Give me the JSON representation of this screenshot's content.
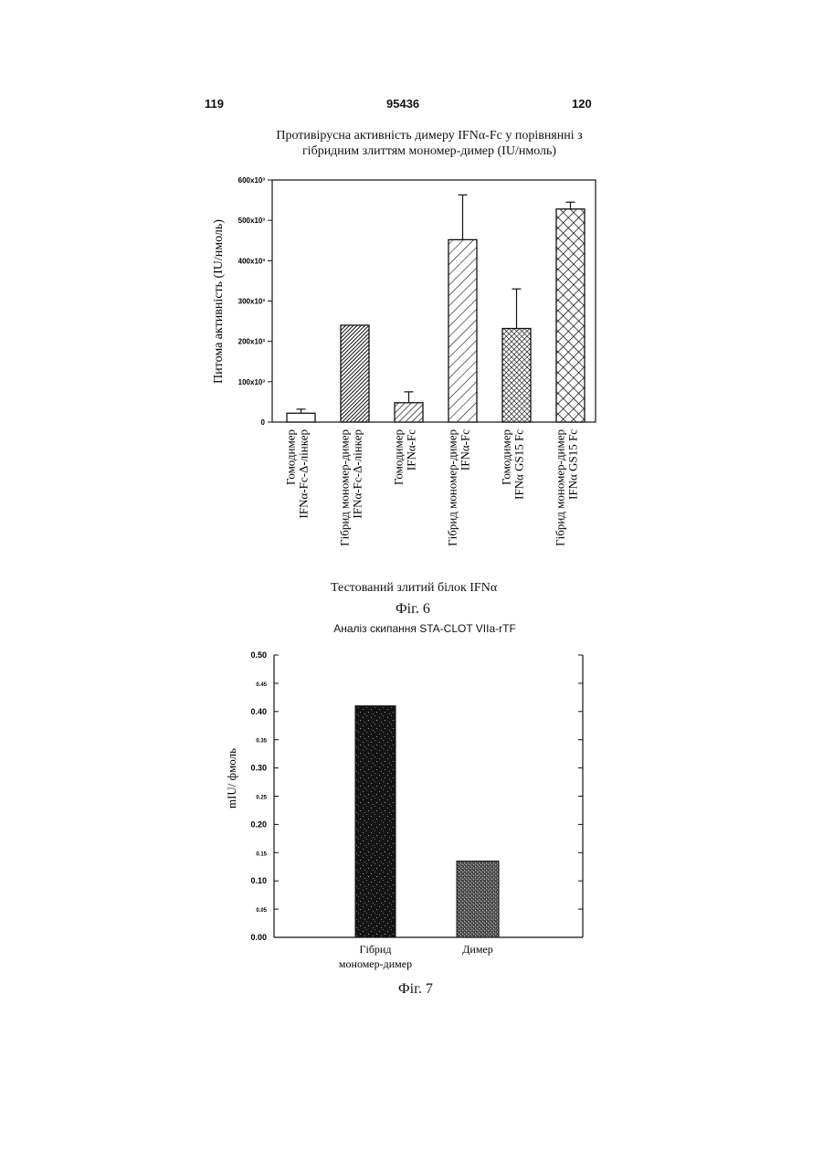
{
  "page": {
    "left_number": "119",
    "patent_number": "95436",
    "right_number": "120"
  },
  "chart_data": [
    {
      "type": "bar",
      "title": "Противірусна активність димеру IFNα-Fc у порівнянні з гібридним злиттям мономер-димер (IU/нмоль)",
      "title_lines": [
        "Противірусна активність димеру IFNα-Fc у порівнянні з",
        "гібридним злиттям мономер-димер (IU/нмоль)"
      ],
      "xlabel": "Тестований злитий білок IFNα",
      "ylabel": "Питома активність (IU/нмоль)",
      "ylim": [
        0,
        600000
      ],
      "yticks": [
        {
          "value": 0,
          "label": "0"
        },
        {
          "value": 100000,
          "label": "100x10³"
        },
        {
          "value": 200000,
          "label": "200x10³"
        },
        {
          "value": 300000,
          "label": "300x10³"
        },
        {
          "value": 400000,
          "label": "400x10³"
        },
        {
          "value": 500000,
          "label": "500x10³"
        },
        {
          "value": 600000,
          "label": "600x10³"
        }
      ],
      "categories": [
        "Гомодимер IFNα-Fc-Δ-лінкер",
        "Гібрид мономер-димер IFNα-Fc-Δ-лінкер",
        "Гомодимер IFNα-Fc",
        "Гібрид мономер-димер IFNα-Fc",
        "Гомодимер IFNα GS15 Fc",
        "Гібрид мономер-димер IFNα GS15 Fc"
      ],
      "category_lines": [
        [
          "Гомодимер",
          "IFNα-Fc-Δ-лінкер"
        ],
        [
          "Гібрид мономер-димер",
          "IFNα-Fc-Δ-лінкер"
        ],
        [
          "Гомодимер",
          "IFNα-Fc"
        ],
        [
          "Гібрид мономер-димер",
          "IFNα-Fc"
        ],
        [
          "Гомодимер",
          "IFNα GS15 Fc"
        ],
        [
          "Гібрид мономер-димер",
          "IFNα GS15 Fc"
        ]
      ],
      "values": [
        22000,
        240000,
        48000,
        452000,
        232000,
        528000
      ],
      "error_upper": [
        32000,
        null,
        75000,
        563000,
        330000,
        545000
      ],
      "patterns": [
        "none",
        "dense-diagonal",
        "diagonal",
        "wide-diagonal",
        "dense-crosshatch",
        "crosshatch"
      ],
      "grid": false,
      "legend": "none"
    },
    {
      "type": "bar",
      "title": "Аналіз скипання STA-CLOT VIIa-rTF",
      "xlabel": "",
      "ylabel": "mIU/ фмоль",
      "ylim": [
        0,
        0.5
      ],
      "yticks": [
        {
          "value": 0.0,
          "label": "0.00",
          "major": true
        },
        {
          "value": 0.05,
          "label": "0.05",
          "major": false
        },
        {
          "value": 0.1,
          "label": "0.10",
          "major": true
        },
        {
          "value": 0.15,
          "label": "0.15",
          "major": false
        },
        {
          "value": 0.2,
          "label": "0.20",
          "major": true
        },
        {
          "value": 0.25,
          "label": "0.25",
          "major": false
        },
        {
          "value": 0.3,
          "label": "0.30",
          "major": true
        },
        {
          "value": 0.35,
          "label": "0.35",
          "major": false
        },
        {
          "value": 0.4,
          "label": "0.40",
          "major": true
        },
        {
          "value": 0.45,
          "label": "0.45",
          "major": false
        },
        {
          "value": 0.5,
          "label": "0.50",
          "major": true
        }
      ],
      "categories": [
        "Гібрид мономер-димер",
        "Димер"
      ],
      "category_lines": [
        [
          "Гібрид",
          "мономер-димер"
        ],
        [
          "Димер"
        ]
      ],
      "values": [
        0.41,
        0.135
      ],
      "grid": false,
      "legend": "none"
    }
  ],
  "captions": {
    "fig6": "Фіг. 6",
    "fig7": "Фіг. 7"
  },
  "colors": {
    "ink": "#111111",
    "bar2_fill": "#1a1a1a",
    "bar7a_fill": "#141414",
    "bar7b_fill": "#6a6a6a"
  }
}
